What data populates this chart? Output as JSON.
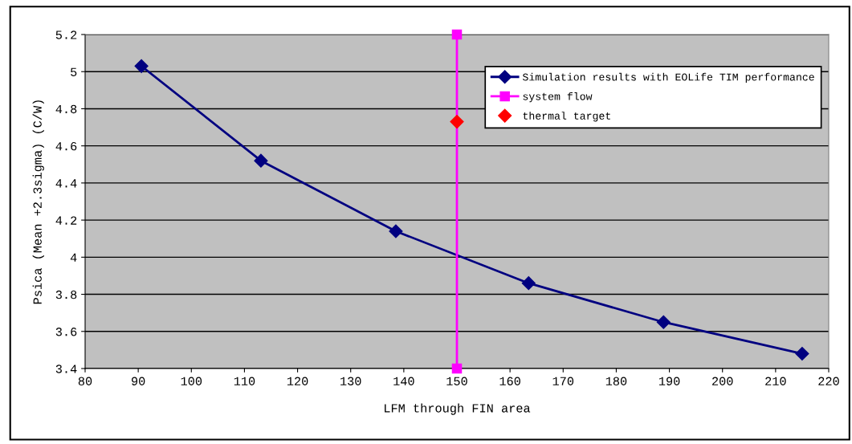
{
  "chart_data": {
    "type": "line",
    "xlabel": "LFM through FIN area",
    "ylabel": "Psica (Mean +2.3sigma) (C/W)",
    "series": [
      {
        "name": "Simulation results with EOLife TIM performance",
        "color": "#000080",
        "marker": "diamond",
        "x": [
          90.6,
          113.1,
          138.5,
          163.5,
          188.9,
          215.0
        ],
        "values": [
          5.03,
          4.52,
          4.14,
          3.86,
          3.65,
          3.48
        ]
      },
      {
        "name": "system flow",
        "color": "#ff00ff",
        "marker": "square",
        "x": [
          150,
          150
        ],
        "values": [
          3.4,
          5.2
        ]
      },
      {
        "name": "thermal target",
        "type": "scatter",
        "color": "#ff0000",
        "marker": "diamond",
        "x": [
          150
        ],
        "values": [
          4.73
        ]
      }
    ],
    "xlim": [
      80,
      220
    ],
    "xticks": [
      80,
      90,
      100,
      110,
      120,
      130,
      140,
      150,
      160,
      170,
      180,
      190,
      200,
      210,
      220
    ],
    "ylim": [
      3.4,
      5.2
    ],
    "yticks": [
      3.4,
      3.6,
      3.8,
      4,
      4.2,
      4.4,
      4.6,
      4.8,
      5,
      5.2
    ],
    "grid": "y",
    "legend": "top right"
  }
}
